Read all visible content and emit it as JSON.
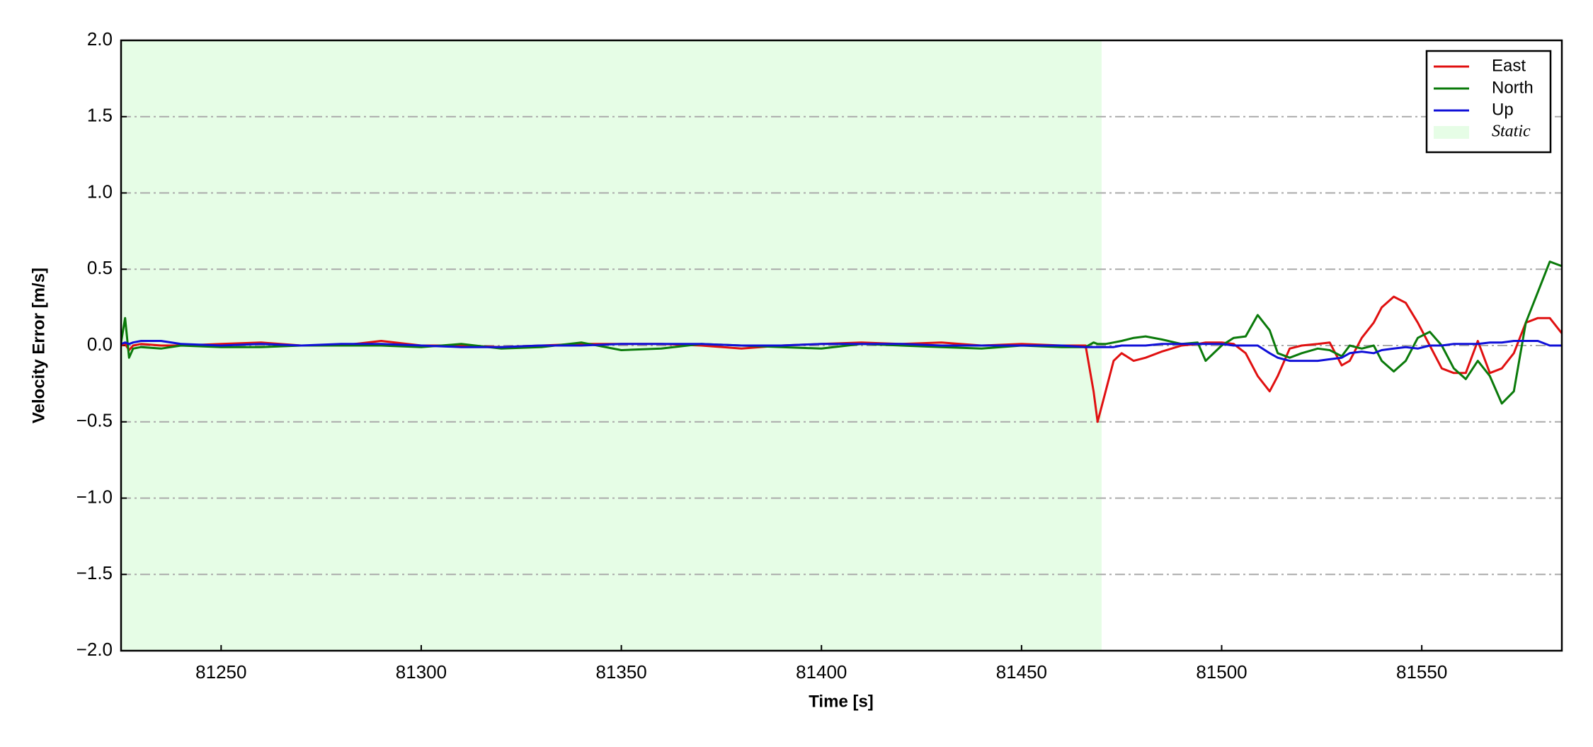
{
  "chart_data": {
    "type": "line",
    "xlabel": "Time [s]",
    "ylabel": "Velocity Error [m/s]",
    "x": [
      81225,
      81226,
      81227,
      81228,
      81230,
      81235,
      81240,
      81250,
      81260,
      81270,
      81280,
      81290,
      81300,
      81310,
      81320,
      81330,
      81340,
      81350,
      81360,
      81370,
      81380,
      81390,
      81400,
      81410,
      81420,
      81430,
      81440,
      81450,
      81460,
      81466,
      81468,
      81469,
      81471,
      81473,
      81475,
      81478,
      81481,
      81485,
      81490,
      81494,
      81496,
      81500,
      81503,
      81506,
      81509,
      81512,
      81514,
      81517,
      81520,
      81524,
      81527,
      81530,
      81532,
      81535,
      81538,
      81540,
      81543,
      81546,
      81549,
      81552,
      81555,
      81558,
      81561,
      81564,
      81567,
      81570,
      81573,
      81576,
      81579,
      81582,
      81585
    ],
    "series": [
      {
        "name": "East",
        "color": "#e01010",
        "values": [
          0.0,
          0.01,
          -0.03,
          0.0,
          0.01,
          0.0,
          0.0,
          0.01,
          0.02,
          0.0,
          0.0,
          0.03,
          0.0,
          0.0,
          -0.01,
          0.0,
          0.01,
          0.01,
          0.01,
          0.0,
          -0.02,
          0.0,
          0.01,
          0.02,
          0.01,
          0.02,
          0.0,
          0.01,
          0.0,
          0.0,
          -0.3,
          -0.5,
          -0.3,
          -0.1,
          -0.05,
          -0.1,
          -0.08,
          -0.04,
          0.0,
          0.01,
          0.02,
          0.02,
          0.01,
          -0.05,
          -0.2,
          -0.3,
          -0.2,
          -0.02,
          0.0,
          0.01,
          0.02,
          -0.13,
          -0.1,
          0.05,
          0.15,
          0.25,
          0.32,
          0.28,
          0.15,
          0.0,
          -0.15,
          -0.18,
          -0.18,
          0.03,
          -0.18,
          -0.15,
          -0.05,
          0.15,
          0.18,
          0.18,
          0.08
        ]
      },
      {
        "name": "North",
        "color": "#0a7a0a",
        "values": [
          0.02,
          0.18,
          -0.08,
          -0.02,
          -0.01,
          -0.02,
          0.0,
          -0.01,
          -0.01,
          0.0,
          0.0,
          0.0,
          -0.01,
          0.01,
          -0.02,
          -0.01,
          0.02,
          -0.03,
          -0.02,
          0.01,
          0.0,
          -0.01,
          -0.02,
          0.01,
          0.0,
          -0.01,
          -0.02,
          0.0,
          -0.01,
          -0.01,
          0.02,
          0.01,
          0.01,
          0.02,
          0.03,
          0.05,
          0.06,
          0.04,
          0.01,
          0.02,
          -0.1,
          0.0,
          0.05,
          0.06,
          0.2,
          0.1,
          -0.05,
          -0.08,
          -0.05,
          -0.02,
          -0.03,
          -0.07,
          0.0,
          -0.02,
          0.0,
          -0.1,
          -0.17,
          -0.1,
          0.05,
          0.09,
          0.0,
          -0.15,
          -0.22,
          -0.1,
          -0.2,
          -0.38,
          -0.3,
          0.15,
          0.35,
          0.55,
          0.52
        ]
      },
      {
        "name": "Up",
        "color": "#1010d8",
        "values": [
          0.01,
          0.02,
          0.01,
          0.02,
          0.03,
          0.03,
          0.01,
          0.0,
          0.01,
          0.0,
          0.01,
          0.01,
          0.0,
          -0.01,
          -0.01,
          0.0,
          0.0,
          0.01,
          0.01,
          0.01,
          0.0,
          0.0,
          0.01,
          0.01,
          0.01,
          0.0,
          0.0,
          0.0,
          0.0,
          -0.01,
          -0.01,
          -0.01,
          -0.01,
          -0.01,
          0.0,
          0.0,
          0.0,
          0.01,
          0.01,
          0.01,
          0.01,
          0.01,
          0.0,
          0.0,
          0.0,
          -0.05,
          -0.08,
          -0.1,
          -0.1,
          -0.1,
          -0.09,
          -0.08,
          -0.05,
          -0.04,
          -0.05,
          -0.03,
          -0.02,
          -0.01,
          -0.02,
          0.0,
          0.0,
          0.01,
          0.01,
          0.01,
          0.02,
          0.02,
          0.03,
          0.03,
          0.03,
          0.0,
          0.0
        ]
      }
    ],
    "shaded": {
      "name": "Static",
      "x_range": [
        81225,
        81470
      ],
      "color": "#e6fde6"
    },
    "xlim": [
      81225,
      81585
    ],
    "ylim": [
      -2,
      2
    ],
    "xticks": [
      81250,
      81300,
      81350,
      81400,
      81450,
      81500,
      81550
    ],
    "yticks": [
      {
        "value": 2,
        "label": "2.0"
      },
      1.5,
      {
        "value": 1,
        "label": "1.0"
      },
      0.5,
      {
        "value": 0,
        "label": "0.0"
      },
      {
        "value": -0.5,
        "label": "−0.5"
      },
      {
        "value": -1,
        "label": "−1.0"
      },
      {
        "value": -1.5,
        "label": "−1.5"
      },
      {
        "value": -2,
        "label": "−2.0"
      }
    ],
    "grid": true,
    "legend": "upper right"
  }
}
